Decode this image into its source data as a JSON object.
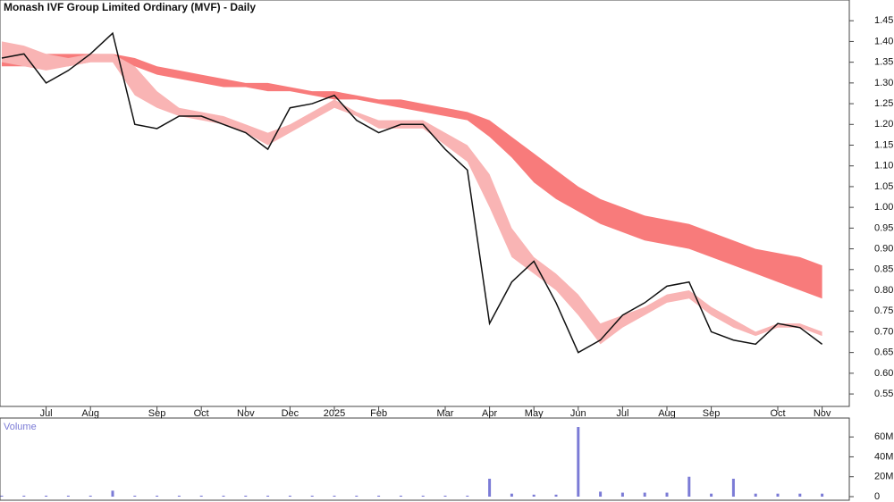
{
  "chart_data": {
    "type": "line",
    "title": "Monash IVF Group Limited Ordinary (MVF) - Daily",
    "categories": [
      null,
      null,
      "Jul",
      null,
      "Aug",
      null,
      null,
      "Sep",
      null,
      "Oct",
      null,
      "Nov",
      null,
      "Dec",
      null,
      "2025",
      null,
      "Feb",
      null,
      null,
      "Mar",
      null,
      "Apr",
      null,
      "May",
      null,
      "Jun",
      null,
      "Jul",
      null,
      "Aug",
      null,
      "Sep",
      null,
      null,
      "Oct",
      null,
      "Nov"
    ],
    "values": [
      1.36,
      1.37,
      1.3,
      1.33,
      1.37,
      1.42,
      1.2,
      1.19,
      1.22,
      1.22,
      1.2,
      1.18,
      1.14,
      1.24,
      1.25,
      1.27,
      1.21,
      1.18,
      1.2,
      1.2,
      1.14,
      1.09,
      0.72,
      0.82,
      0.87,
      0.77,
      0.65,
      0.68,
      0.74,
      0.77,
      0.81,
      0.82,
      0.7,
      0.68,
      0.67,
      0.72,
      0.71,
      0.67
    ],
    "color": "#111111",
    "bands": [
      {
        "color": "#f87b7b",
        "upper": [
          1.39,
          1.38,
          1.37,
          1.37,
          1.37,
          1.37,
          1.36,
          1.34,
          1.33,
          1.32,
          1.31,
          1.3,
          1.3,
          1.29,
          1.28,
          1.28,
          1.27,
          1.26,
          1.26,
          1.25,
          1.24,
          1.23,
          1.21,
          1.17,
          1.13,
          1.09,
          1.05,
          1.02,
          1.0,
          0.98,
          0.97,
          0.96,
          0.94,
          0.92,
          0.9,
          0.89,
          0.88,
          0.86
        ],
        "lower": [
          1.34,
          1.34,
          1.34,
          1.34,
          1.35,
          1.35,
          1.34,
          1.32,
          1.31,
          1.3,
          1.29,
          1.29,
          1.28,
          1.28,
          1.27,
          1.26,
          1.26,
          1.25,
          1.24,
          1.23,
          1.22,
          1.21,
          1.17,
          1.12,
          1.06,
          1.02,
          0.99,
          0.96,
          0.94,
          0.92,
          0.91,
          0.9,
          0.88,
          0.86,
          0.84,
          0.82,
          0.8,
          0.78
        ]
      },
      {
        "color": "#f9b4b4",
        "upper": [
          1.4,
          1.39,
          1.37,
          1.36,
          1.37,
          1.37,
          1.34,
          1.28,
          1.24,
          1.23,
          1.22,
          1.2,
          1.18,
          1.2,
          1.23,
          1.26,
          1.23,
          1.21,
          1.21,
          1.21,
          1.18,
          1.15,
          1.08,
          0.95,
          0.88,
          0.84,
          0.79,
          0.72,
          0.74,
          0.76,
          0.79,
          0.8,
          0.76,
          0.73,
          0.7,
          0.72,
          0.72,
          0.7
        ],
        "lower": [
          1.35,
          1.34,
          1.33,
          1.34,
          1.35,
          1.35,
          1.27,
          1.24,
          1.22,
          1.21,
          1.2,
          1.18,
          1.15,
          1.18,
          1.21,
          1.24,
          1.22,
          1.19,
          1.19,
          1.19,
          1.15,
          1.11,
          1.0,
          0.88,
          0.84,
          0.8,
          0.74,
          0.67,
          0.71,
          0.74,
          0.77,
          0.78,
          0.74,
          0.71,
          0.69,
          0.71,
          0.71,
          0.69
        ]
      }
    ],
    "ylim": [
      0.52,
      1.5
    ],
    "yticks": [
      0.55,
      {
        "value": 0.6,
        "label": "0.60"
      },
      0.65,
      {
        "value": 0.7,
        "label": "0.70"
      },
      0.75,
      {
        "value": 0.8,
        "label": "0.80"
      },
      0.85,
      {
        "value": 0.9,
        "label": "0.90"
      },
      0.95,
      {
        "value": 1.0,
        "label": "1.00"
      },
      1.05,
      {
        "value": 1.1,
        "label": "1.10"
      },
      1.15,
      {
        "value": 1.2,
        "label": "1.20"
      },
      1.25,
      {
        "value": 1.3,
        "label": "1.30"
      },
      1.35,
      {
        "value": 1.4,
        "label": "1.40"
      },
      1.45
    ],
    "volume": {
      "title": "Volume",
      "color": "#7b7bd6",
      "values": [
        1000000,
        1000000,
        1000000,
        1000000,
        1000000,
        6000000,
        1000000,
        1000000,
        1000000,
        1000000,
        1000000,
        1000000,
        1000000,
        1000000,
        1000000,
        1000000,
        1000000,
        1000000,
        1000000,
        1000000,
        1000000,
        1000000,
        18000000,
        3000000,
        2000000,
        2000000,
        70000000,
        5000000,
        4000000,
        4000000,
        4000000,
        20000000,
        3000000,
        18000000,
        3000000,
        3000000,
        3000000,
        3000000
      ],
      "ylim": [
        0,
        79000000
      ],
      "yticks": [
        0,
        {
          "value": 20000000,
          "label": "20M"
        },
        {
          "value": 40000000,
          "label": "40M"
        },
        {
          "value": 60000000,
          "label": "60M"
        }
      ]
    }
  }
}
